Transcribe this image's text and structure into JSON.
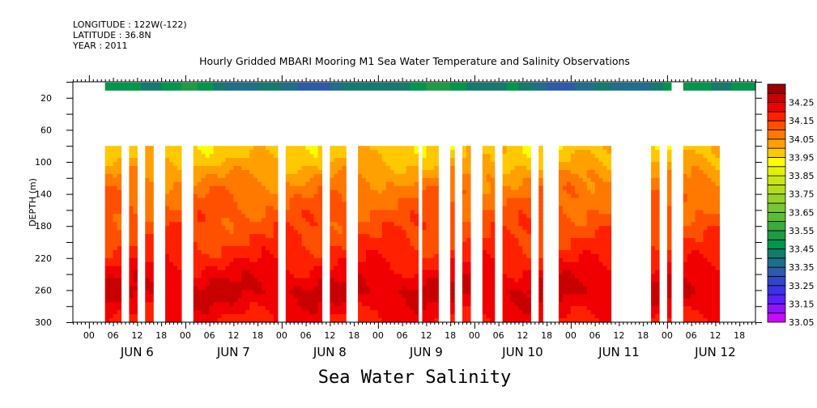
{
  "header": {
    "longitude": "LONGITUDE : 122W(-122)",
    "latitude": "LATITUDE : 36.8N",
    "year": "YEAR : 2011"
  },
  "chart_data": {
    "type": "heatmap",
    "title": "Hourly Gridded MBARI Mooring M1 Sea Water Temperature and Salinity Observations",
    "xlabel": "Sea Water Salinity",
    "ylabel": "DEPTH (m)",
    "x_units": "hours since JUN 6 2011 00:00",
    "xlim": [
      -4,
      166
    ],
    "ylim": [
      300,
      0
    ],
    "y_ticks": [
      20,
      60,
      100,
      140,
      180,
      220,
      260,
      300
    ],
    "hour_tick_labels": [
      "00",
      "06",
      "12",
      "18"
    ],
    "day_labels": [
      "JUN  6",
      "JUN  7",
      "JUN  8",
      "JUN  9",
      "JUN 10",
      "JUN 11",
      "JUN 12"
    ],
    "colorbar": {
      "min": 33.05,
      "max": 34.3,
      "step": 0.05,
      "labels": [
        "34.25",
        "34.15",
        "34.05",
        "33.95",
        "33.85",
        "33.75",
        "33.65",
        "33.55",
        "33.45",
        "33.35",
        "33.25",
        "33.15",
        "33.05"
      ],
      "colors": [
        "#c80aff",
        "#8c14ff",
        "#5a1eff",
        "#3c32e6",
        "#3246c8",
        "#2d5aaa",
        "#1e6e8c",
        "#147a6e",
        "#00964b",
        "#1e9b46",
        "#3caa3c",
        "#5abe32",
        "#78c832",
        "#96d228",
        "#b4dc1e",
        "#c8e614",
        "#e6f000",
        "#ffff00",
        "#ffc800",
        "#ffa000",
        "#ff7800",
        "#ff5000",
        "#ff2000",
        "#f00000",
        "#c80000",
        "#9b0000"
      ]
    },
    "surface_layer": {
      "depth_range": [
        0,
        10
      ],
      "salinity": 33.42,
      "segments": [
        [
          4,
          145
        ],
        [
          148,
          166
        ]
      ]
    },
    "deep_layer": {
      "depth_range": [
        80,
        300
      ],
      "segments": [
        [
          4,
          8
        ],
        [
          10,
          12
        ],
        [
          14,
          16
        ],
        [
          19,
          23
        ],
        [
          26,
          47
        ],
        [
          49,
          58
        ],
        [
          60,
          64
        ],
        [
          67,
          82
        ],
        [
          83,
          87
        ],
        [
          90,
          91
        ],
        [
          93,
          95
        ],
        [
          98,
          101
        ],
        [
          103,
          110
        ],
        [
          112,
          113
        ],
        [
          117,
          130
        ],
        [
          140,
          142
        ],
        [
          144,
          145
        ],
        [
          148,
          157
        ]
      ],
      "profile_depth": [
        80,
        100,
        120,
        140,
        160,
        180,
        200,
        220,
        240,
        260,
        280,
        300
      ],
      "profile_salinity": [
        33.97,
        34.0,
        34.05,
        34.09,
        34.11,
        34.13,
        34.15,
        34.18,
        34.22,
        34.26,
        34.23,
        34.19
      ]
    }
  }
}
